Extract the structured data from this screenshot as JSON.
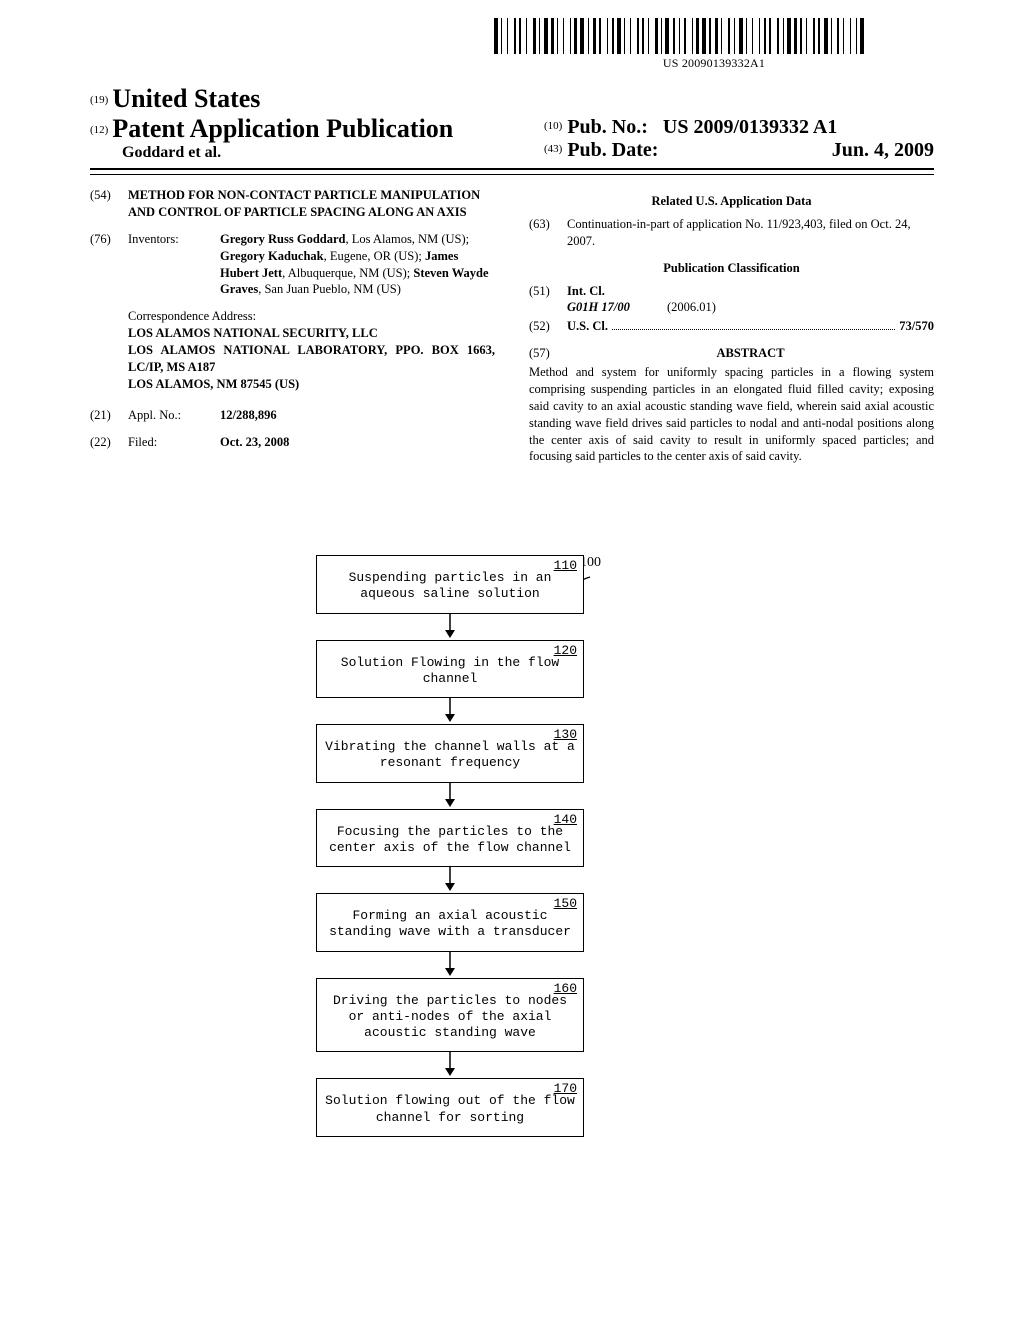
{
  "barcode_label": "US 20090139332A1",
  "header": {
    "code19": "(19)",
    "country": "United States",
    "code12": "(12)",
    "pub_type": "Patent Application Publication",
    "authors_line": "Goddard et al.",
    "code10": "(10)",
    "pubno_label": "Pub. No.:",
    "pubno": "US 2009/0139332 A1",
    "code43": "(43)",
    "pubdate_label": "Pub. Date:",
    "pubdate": "Jun. 4, 2009"
  },
  "left": {
    "code54": "(54)",
    "title": "METHOD FOR NON-CONTACT PARTICLE MANIPULATION AND CONTROL OF PARTICLE SPACING ALONG AN AXIS",
    "code76": "(76)",
    "inventors_label": "Inventors:",
    "inventors_html": "Gregory Russ Goddard, Los Alamos, NM (US); Gregory Kaduchak, Eugene, OR (US); James Hubert Jett, Albuquerque, NM (US); Steven Wayde Graves, San Juan Pueblo, NM (US)",
    "corr_label": "Correspondence Address:",
    "corr_l1": "LOS ALAMOS NATIONAL SECURITY, LLC",
    "corr_l2": "LOS ALAMOS NATIONAL LABORATORY, PPO. BOX 1663, LC/IP, MS A187",
    "corr_l3": "LOS ALAMOS, NM 87545 (US)",
    "code21": "(21)",
    "applno_label": "Appl. No.:",
    "applno": "12/288,896",
    "code22": "(22)",
    "filed_label": "Filed:",
    "filed": "Oct. 23, 2008"
  },
  "right": {
    "related_head": "Related U.S. Application Data",
    "code63": "(63)",
    "related_text": "Continuation-in-part of application No. 11/923,403, filed on Oct. 24, 2007.",
    "class_head": "Publication Classification",
    "code51": "(51)",
    "intcl_label": "Int. Cl.",
    "intcl_code": "G01H 17/00",
    "intcl_date": "(2006.01)",
    "code52": "(52)",
    "uscl_label": "U.S. Cl.",
    "uscl_val": "73/570",
    "code57": "(57)",
    "abstract_head": "ABSTRACT",
    "abstract_text": "Method and system for uniformly spacing particles in a flowing system comprising suspending particles in an elongated fluid filled cavity; exposing said cavity to an axial acoustic standing wave field, wherein said axial acoustic standing wave field drives said particles to nodal and anti-nodal positions along the center axis of said cavity to result in uniformly spaced particles; and focusing said particles to the center axis of said cavity."
  },
  "flowchart": {
    "ref": "100",
    "steps": [
      {
        "num": "110",
        "text": "Suspending particles in an aqueous saline solution"
      },
      {
        "num": "120",
        "text": "Solution Flowing in the flow channel"
      },
      {
        "num": "130",
        "text": "Vibrating the channel walls at a resonant frequency"
      },
      {
        "num": "140",
        "text": "Focusing the particles to the center axis of the flow channel"
      },
      {
        "num": "150",
        "text": "Forming an axial acoustic standing wave with a transducer"
      },
      {
        "num": "160",
        "text": "Driving the particles to nodes or anti-nodes of the axial acoustic standing wave"
      },
      {
        "num": "170",
        "text": "Solution flowing out of the flow channel for sorting"
      }
    ]
  }
}
